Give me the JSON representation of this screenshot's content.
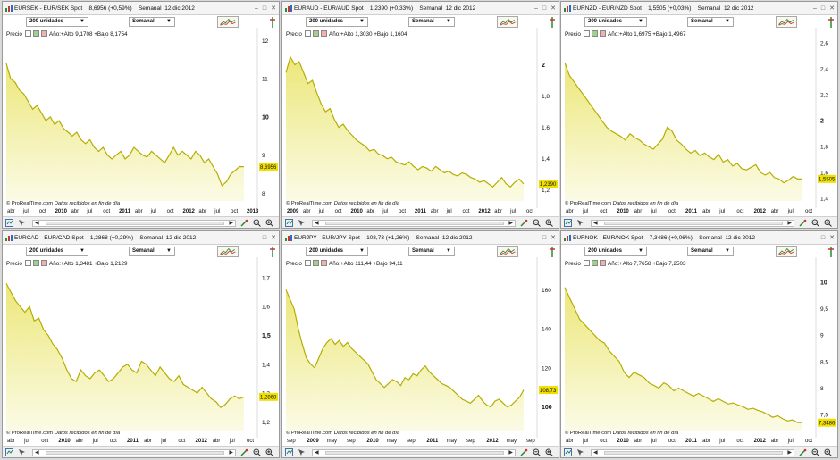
{
  "colors": {
    "line": "#b5ad00",
    "fill_top": "#ece77a",
    "fill_bottom": "#fbfbe6",
    "price_tag": "#f0e000",
    "grid": "#ececec"
  },
  "windows": [
    {
      "title": "EURSEK - EUR/SEK Spot",
      "quote": "8,6956 (+0,59%)",
      "period": "Semanal",
      "date": "12 dic 2012",
      "units": "200 unidades",
      "info_label": "Precio",
      "info_text": "Año:+Alto 9,1708 +Bajo 8,1754",
      "footer_brand": "© ProRealTime.com",
      "footer_src": "Datos recibidos en fin de día",
      "price_tag": "8,6956",
      "y_ticks": [
        {
          "v": "12",
          "b": false
        },
        {
          "v": "11",
          "b": false
        },
        {
          "v": "10",
          "b": true
        },
        {
          "v": "9",
          "b": false
        },
        {
          "v": "8",
          "b": false
        }
      ],
      "x_labels": [
        {
          "t": "abr",
          "b": false
        },
        {
          "t": "jul",
          "b": false
        },
        {
          "t": "oct",
          "b": false
        },
        {
          "t": "2010",
          "b": true
        },
        {
          "t": "abr",
          "b": false
        },
        {
          "t": "jul",
          "b": false
        },
        {
          "t": "oct",
          "b": false
        },
        {
          "t": "2011",
          "b": true
        },
        {
          "t": "abr",
          "b": false
        },
        {
          "t": "jul",
          "b": false
        },
        {
          "t": "oct",
          "b": false
        },
        {
          "t": "2012",
          "b": true
        },
        {
          "t": "abr",
          "b": false
        },
        {
          "t": "jul",
          "b": false
        },
        {
          "t": "oct",
          "b": false
        },
        {
          "t": "2013",
          "b": true
        }
      ]
    },
    {
      "title": "EURAUD - EUR/AUD Spot",
      "quote": "1,2390 (+0,33%)",
      "period": "Semanal",
      "date": "12 dic 2012",
      "units": "200 unidades",
      "info_label": "Precio",
      "info_text": "Año:+Alto 1,3030 +Bajo 1,1604",
      "footer_brand": "© ProRealTime.com",
      "footer_src": "Datos recibidos en fin de día",
      "price_tag": "1,2390",
      "y_ticks": [
        {
          "v": "2",
          "b": true
        },
        {
          "v": "1,8",
          "b": false
        },
        {
          "v": "1,6",
          "b": false
        },
        {
          "v": "1,4",
          "b": false
        },
        {
          "v": "1,2",
          "b": false
        }
      ],
      "x_labels": [
        {
          "t": "2009",
          "b": true
        },
        {
          "t": "abr",
          "b": false
        },
        {
          "t": "jul",
          "b": false
        },
        {
          "t": "oct",
          "b": false
        },
        {
          "t": "2010",
          "b": true
        },
        {
          "t": "abr",
          "b": false
        },
        {
          "t": "jul",
          "b": false
        },
        {
          "t": "oct",
          "b": false
        },
        {
          "t": "2011",
          "b": true
        },
        {
          "t": "abr",
          "b": false
        },
        {
          "t": "jul",
          "b": false
        },
        {
          "t": "oct",
          "b": false
        },
        {
          "t": "2012",
          "b": true
        },
        {
          "t": "abr",
          "b": false
        },
        {
          "t": "jul",
          "b": false
        },
        {
          "t": "oct",
          "b": false
        }
      ]
    },
    {
      "title": "EURNZD - EUR/NZD Spot",
      "quote": "1,5505 (+0,03%)",
      "period": "Semanal",
      "date": "12 dic 2012",
      "units": "200 unidades",
      "info_label": "Precio",
      "info_text": "Año:+Alto 1,6975 +Bajo 1,4967",
      "footer_brand": "© ProRealTime.com",
      "footer_src": "Datos recibidos en fin de día",
      "price_tag": "1,5505",
      "y_ticks": [
        {
          "v": "2,6",
          "b": false
        },
        {
          "v": "2,4",
          "b": false
        },
        {
          "v": "2,2",
          "b": false
        },
        {
          "v": "2",
          "b": true
        },
        {
          "v": "1,8",
          "b": false
        },
        {
          "v": "1,6",
          "b": false
        },
        {
          "v": "1,4",
          "b": false
        }
      ],
      "x_labels": [
        {
          "t": "abr",
          "b": false
        },
        {
          "t": "jul",
          "b": false
        },
        {
          "t": "oct",
          "b": false
        },
        {
          "t": "2010",
          "b": true
        },
        {
          "t": "abr",
          "b": false
        },
        {
          "t": "jul",
          "b": false
        },
        {
          "t": "oct",
          "b": false
        },
        {
          "t": "2011",
          "b": true
        },
        {
          "t": "abr",
          "b": false
        },
        {
          "t": "jul",
          "b": false
        },
        {
          "t": "oct",
          "b": false
        },
        {
          "t": "2012",
          "b": true
        },
        {
          "t": "abr",
          "b": false
        },
        {
          "t": "jul",
          "b": false
        },
        {
          "t": "oct",
          "b": false
        }
      ]
    },
    {
      "title": "EURCAD - EUR/CAD Spot",
      "quote": "1,2868 (+0,29%)",
      "period": "Semanal",
      "date": "12 dic 2012",
      "units": "200 unidades",
      "info_label": "Precio",
      "info_text": "Año:+Alto 1,3481 +Bajo 1,2129",
      "footer_brand": "© ProRealTime.com",
      "footer_src": "Datos recibidos en fin de día",
      "price_tag": "1,2868",
      "y_ticks": [
        {
          "v": "1,7",
          "b": false
        },
        {
          "v": "1,6",
          "b": false
        },
        {
          "v": "1,5",
          "b": true
        },
        {
          "v": "1,4",
          "b": false
        },
        {
          "v": "1,3",
          "b": false
        },
        {
          "v": "1,2",
          "b": false
        }
      ],
      "x_labels": [
        {
          "t": "abr",
          "b": false
        },
        {
          "t": "jul",
          "b": false
        },
        {
          "t": "oct",
          "b": false
        },
        {
          "t": "2010",
          "b": true
        },
        {
          "t": "abr",
          "b": false
        },
        {
          "t": "jul",
          "b": false
        },
        {
          "t": "oct",
          "b": false
        },
        {
          "t": "2011",
          "b": true
        },
        {
          "t": "abr",
          "b": false
        },
        {
          "t": "jul",
          "b": false
        },
        {
          "t": "oct",
          "b": false
        },
        {
          "t": "2012",
          "b": true
        },
        {
          "t": "abr",
          "b": false
        },
        {
          "t": "jul",
          "b": false
        },
        {
          "t": "oct",
          "b": false
        }
      ]
    },
    {
      "title": "EURJPY - EUR/JPY Spot",
      "quote": "108,73 (+1,26%)",
      "period": "Semanal",
      "date": "12 dic 2012",
      "units": "200 unidades",
      "info_label": "Precio",
      "info_text": "Año:+Alto 111,44 +Bajo 94,11",
      "footer_brand": "© ProRealTime.com",
      "footer_src": "Datos recibidos en fin de día",
      "price_tag": "108,73",
      "y_ticks": [
        {
          "v": "160",
          "b": false
        },
        {
          "v": "140",
          "b": false
        },
        {
          "v": "120",
          "b": false
        },
        {
          "v": "100",
          "b": true
        }
      ],
      "x_labels": [
        {
          "t": "sep",
          "b": false
        },
        {
          "t": "2009",
          "b": true
        },
        {
          "t": "may",
          "b": false
        },
        {
          "t": "sep",
          "b": false
        },
        {
          "t": "2010",
          "b": true
        },
        {
          "t": "may",
          "b": false
        },
        {
          "t": "sep",
          "b": false
        },
        {
          "t": "2011",
          "b": true
        },
        {
          "t": "may",
          "b": false
        },
        {
          "t": "sep",
          "b": false
        },
        {
          "t": "2012",
          "b": true
        },
        {
          "t": "may",
          "b": false
        },
        {
          "t": "sep",
          "b": false
        }
      ]
    },
    {
      "title": "EURNOK - EUR/NOK Spot",
      "quote": "7,3486 (+0,06%)",
      "period": "Semanal",
      "date": "12 dic 2012",
      "units": "200 unidades",
      "info_label": "Precio",
      "info_text": "Año:+Alto 7,7658 +Bajo 7,2503",
      "footer_brand": "© ProRealTime.com",
      "footer_src": "Datos recibidos en fin de día",
      "price_tag": "7,3486",
      "y_ticks": [
        {
          "v": "10",
          "b": true
        },
        {
          "v": "9,5",
          "b": false
        },
        {
          "v": "9",
          "b": false
        },
        {
          "v": "8,5",
          "b": false
        },
        {
          "v": "8",
          "b": false
        },
        {
          "v": "7,5",
          "b": false
        }
      ],
      "x_labels": [
        {
          "t": "abr",
          "b": false
        },
        {
          "t": "jul",
          "b": false
        },
        {
          "t": "oct",
          "b": false
        },
        {
          "t": "2010",
          "b": true
        },
        {
          "t": "abr",
          "b": false
        },
        {
          "t": "jul",
          "b": false
        },
        {
          "t": "oct",
          "b": false
        },
        {
          "t": "2011",
          "b": true
        },
        {
          "t": "abr",
          "b": false
        },
        {
          "t": "jul",
          "b": false
        },
        {
          "t": "oct",
          "b": false
        },
        {
          "t": "2012",
          "b": true
        },
        {
          "t": "abr",
          "b": false
        },
        {
          "t": "jul",
          "b": false
        },
        {
          "t": "oct",
          "b": false
        }
      ]
    }
  ],
  "chart_data": [
    {
      "type": "area",
      "title": "EURSEK - EUR/SEK Spot",
      "ylim": [
        7.8,
        12.1
      ],
      "yticks": [
        12,
        11,
        10,
        9,
        8
      ],
      "last": 8.6956,
      "values": [
        11.4,
        11.0,
        10.9,
        10.7,
        10.6,
        10.4,
        10.2,
        10.3,
        10.1,
        9.9,
        10.0,
        9.8,
        9.9,
        9.7,
        9.6,
        9.5,
        9.6,
        9.4,
        9.3,
        9.4,
        9.2,
        9.1,
        9.2,
        9.0,
        8.9,
        9.0,
        9.1,
        8.9,
        9.0,
        9.2,
        9.1,
        9.0,
        8.95,
        9.1,
        9.0,
        8.9,
        8.8,
        9.0,
        9.2,
        9.0,
        9.1,
        9.0,
        8.9,
        9.1,
        9.0,
        8.8,
        8.9,
        8.7,
        8.5,
        8.2,
        8.3,
        8.5,
        8.6,
        8.7,
        8.6956
      ]
    },
    {
      "type": "area",
      "title": "EURAUD - EUR/AUD Spot",
      "ylim": [
        1.13,
        2.18
      ],
      "yticks": [
        2,
        1.8,
        1.6,
        1.4,
        1.2
      ],
      "last": 1.239,
      "values": [
        1.95,
        2.05,
        2.0,
        2.02,
        1.95,
        1.88,
        1.9,
        1.82,
        1.75,
        1.7,
        1.72,
        1.65,
        1.6,
        1.62,
        1.58,
        1.55,
        1.52,
        1.5,
        1.48,
        1.45,
        1.46,
        1.43,
        1.42,
        1.4,
        1.41,
        1.38,
        1.37,
        1.36,
        1.38,
        1.35,
        1.33,
        1.35,
        1.34,
        1.32,
        1.35,
        1.33,
        1.31,
        1.32,
        1.3,
        1.29,
        1.31,
        1.3,
        1.28,
        1.27,
        1.25,
        1.26,
        1.24,
        1.22,
        1.25,
        1.28,
        1.24,
        1.22,
        1.25,
        1.27,
        1.239
      ]
    },
    {
      "type": "area",
      "title": "EURNZD - EUR/NZD Spot",
      "ylim": [
        1.38,
        2.65
      ],
      "yticks": [
        2.6,
        2.4,
        2.2,
        2,
        1.8,
        1.6,
        1.4
      ],
      "last": 1.5505,
      "values": [
        2.45,
        2.35,
        2.3,
        2.25,
        2.2,
        2.15,
        2.1,
        2.05,
        2.0,
        1.95,
        1.92,
        1.9,
        1.88,
        1.85,
        1.9,
        1.87,
        1.85,
        1.82,
        1.8,
        1.78,
        1.82,
        1.86,
        1.95,
        1.92,
        1.85,
        1.82,
        1.78,
        1.75,
        1.77,
        1.73,
        1.75,
        1.72,
        1.7,
        1.74,
        1.68,
        1.7,
        1.65,
        1.67,
        1.63,
        1.62,
        1.64,
        1.66,
        1.6,
        1.58,
        1.6,
        1.56,
        1.55,
        1.52,
        1.54,
        1.57,
        1.55,
        1.5505
      ]
    },
    {
      "type": "area",
      "title": "EURCAD - EUR/CAD Spot",
      "ylim": [
        1.17,
        1.74
      ],
      "yticks": [
        1.7,
        1.6,
        1.5,
        1.4,
        1.3,
        1.2
      ],
      "last": 1.2868,
      "values": [
        1.68,
        1.65,
        1.62,
        1.6,
        1.58,
        1.6,
        1.55,
        1.56,
        1.52,
        1.5,
        1.47,
        1.45,
        1.42,
        1.38,
        1.35,
        1.34,
        1.38,
        1.36,
        1.35,
        1.37,
        1.38,
        1.36,
        1.34,
        1.35,
        1.37,
        1.39,
        1.4,
        1.38,
        1.37,
        1.41,
        1.4,
        1.38,
        1.36,
        1.39,
        1.37,
        1.35,
        1.34,
        1.36,
        1.33,
        1.32,
        1.31,
        1.3,
        1.32,
        1.3,
        1.28,
        1.27,
        1.25,
        1.26,
        1.28,
        1.29,
        1.28,
        1.2868
      ]
    },
    {
      "type": "area",
      "title": "EURJPY - EUR/JPY Spot",
      "ylim": [
        88,
        172
      ],
      "yticks": [
        160,
        140,
        120,
        100
      ],
      "last": 108.73,
      "values": [
        160,
        155,
        150,
        140,
        132,
        125,
        122,
        120,
        125,
        130,
        133,
        135,
        132,
        134,
        131,
        133,
        130,
        128,
        126,
        124,
        122,
        118,
        114,
        112,
        110,
        112,
        114,
        113,
        111,
        115,
        114,
        117,
        116,
        119,
        121,
        118,
        116,
        114,
        112,
        111,
        110,
        108,
        106,
        104,
        103,
        102,
        104,
        106,
        103,
        101,
        100,
        103,
        104,
        102,
        100,
        101,
        103,
        105,
        108.73
      ]
    },
    {
      "type": "area",
      "title": "EURNOK - EUR/NOK Spot",
      "ylim": [
        7.2,
        10.3
      ],
      "yticks": [
        10,
        9.5,
        9,
        8.5,
        8,
        7.5
      ],
      "last": 7.3486,
      "values": [
        9.9,
        9.7,
        9.5,
        9.3,
        9.2,
        9.1,
        9.0,
        8.9,
        8.85,
        8.7,
        8.6,
        8.5,
        8.3,
        8.2,
        8.3,
        8.25,
        8.2,
        8.1,
        8.05,
        8.0,
        8.1,
        8.05,
        7.95,
        8.0,
        7.95,
        7.9,
        7.85,
        7.9,
        7.85,
        7.8,
        7.75,
        7.8,
        7.75,
        7.7,
        7.72,
        7.68,
        7.65,
        7.6,
        7.62,
        7.58,
        7.55,
        7.5,
        7.45,
        7.48,
        7.42,
        7.38,
        7.4,
        7.35,
        7.3486
      ]
    }
  ]
}
